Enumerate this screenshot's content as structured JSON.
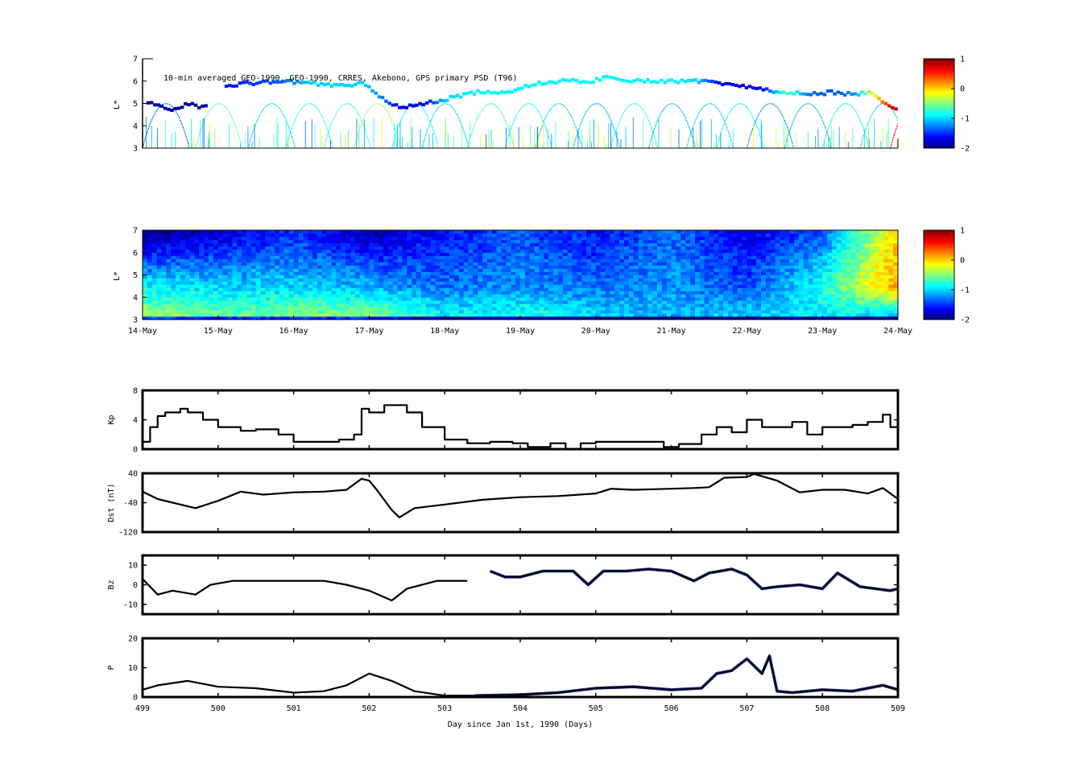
{
  "chart_data": [
    {
      "type": "scatter",
      "panel": "psd-observations",
      "title": "10-min averaged GEO-1990, GEO-1990, CRRES, Akebono, GPS  primary PSD (T96)",
      "ylabel": "L*",
      "ylim": [
        3,
        7
      ],
      "yticks": [
        "3",
        "4",
        "5",
        "6",
        "7"
      ],
      "xlim": [
        499,
        509
      ],
      "colorbar": {
        "range": [
          -2,
          1
        ],
        "ticks": [
          "-2",
          "-1",
          "0",
          "1"
        ],
        "colormap": "jet"
      },
      "upper_track": {
        "x": [
          499.1,
          499.4,
          499.6,
          499.8,
          500.0,
          500.4,
          500.9,
          501.2,
          501.6,
          501.9,
          502.1,
          502.4,
          502.7,
          503.0,
          503.4,
          503.8,
          504.2,
          504.6,
          504.9,
          505.2,
          505.4,
          505.7,
          506.0,
          506.3,
          506.6,
          506.9,
          507.2,
          507.5,
          507.8,
          508.1,
          508.4,
          508.6,
          508.9
        ],
        "y": [
          5.0,
          4.7,
          5.0,
          4.8,
          5.8,
          5.9,
          6.0,
          5.9,
          5.8,
          5.9,
          5.3,
          4.8,
          5.0,
          5.2,
          5.5,
          5.5,
          5.9,
          6.0,
          6.0,
          6.2,
          6.0,
          6.0,
          6.0,
          6.0,
          5.9,
          5.8,
          5.6,
          5.5,
          5.4,
          5.5,
          5.4,
          5.5,
          4.8
        ],
        "color": [
          -1.9,
          -1.9,
          -1.9,
          -1.9,
          -1.6,
          -1.5,
          -1.3,
          -1.0,
          -1.0,
          -1.0,
          -1.2,
          -1.7,
          -1.7,
          -1.0,
          -0.9,
          -0.9,
          -0.9,
          -0.9,
          -0.9,
          -0.9,
          -0.9,
          -0.9,
          -0.9,
          -1.0,
          -1.6,
          -1.7,
          -1.6,
          -0.6,
          -1.3,
          -1.4,
          -1.2,
          -0.4,
          0.8
        ]
      },
      "passes": {
        "x_start": [
          499.0,
          499.7,
          500.4,
          500.9,
          501.4,
          501.8,
          502.3,
          502.7,
          503.3,
          503.8,
          504.2,
          504.7,
          505.2,
          505.7,
          506.2,
          506.6,
          507.0,
          507.5,
          508.0,
          508.5,
          508.9
        ],
        "color": [
          -1.3,
          -0.6,
          -1.0,
          -0.8,
          -0.7,
          -0.4,
          -0.9,
          -1.0,
          -0.7,
          -0.9,
          -1.0,
          -1.1,
          -0.8,
          -1.1,
          -1.0,
          -0.9,
          -1.2,
          -1.1,
          -0.9,
          -1.0,
          0.6
        ]
      }
    },
    {
      "type": "heatmap",
      "panel": "psd-reanalysis",
      "ylabel": "L*",
      "ylim": [
        3,
        7
      ],
      "yticks": [
        "3",
        "4",
        "5",
        "6",
        "7"
      ],
      "xticks": [
        "14-May",
        "15-May",
        "16-May",
        "17-May",
        "18-May",
        "19-May",
        "20-May",
        "21-May",
        "22-May",
        "23-May",
        "24-May"
      ],
      "colorbar": {
        "range": [
          -2,
          1
        ],
        "ticks": [
          "-2",
          "-1",
          "0",
          "1"
        ],
        "colormap": "jet"
      },
      "profile_day": [
        499,
        500,
        501,
        502,
        503,
        504,
        505,
        506,
        507,
        508,
        509
      ],
      "level_low": [
        -0.4,
        -0.6,
        -0.5,
        -0.5,
        -0.9,
        -0.8,
        -1.0,
        -1.1,
        -1.0,
        -0.9,
        -1.0
      ],
      "level_mid": [
        -0.9,
        -1.0,
        -1.0,
        -1.1,
        -1.3,
        -1.2,
        -1.3,
        -1.2,
        -1.4,
        -0.8,
        0.2
      ],
      "level_high": [
        -2.0,
        -1.8,
        -1.5,
        -1.9,
        -1.6,
        -1.4,
        -1.6,
        -1.3,
        -1.7,
        -1.4,
        0.0
      ]
    },
    {
      "type": "line",
      "panel": "kp",
      "ylabel": "Kp",
      "ylim": [
        0,
        8
      ],
      "yticks": [
        "0",
        "4",
        "8"
      ],
      "x": [
        499.0,
        499.1,
        499.2,
        499.3,
        499.5,
        499.6,
        499.8,
        500.0,
        500.3,
        500.5,
        500.8,
        501.0,
        501.3,
        501.6,
        501.8,
        501.9,
        502.0,
        502.2,
        502.5,
        502.7,
        503.0,
        503.3,
        503.6,
        503.9,
        504.1,
        504.4,
        504.6,
        504.8,
        505.0,
        505.3,
        505.6,
        505.9,
        506.1,
        506.4,
        506.6,
        506.8,
        507.0,
        507.2,
        507.4,
        507.6,
        507.8,
        508.0,
        508.2,
        508.4,
        508.6,
        508.8,
        508.9,
        509.0
      ],
      "y": [
        1,
        3,
        4.5,
        5,
        5.5,
        5,
        4,
        3,
        2.5,
        2.7,
        2,
        1,
        1,
        1.3,
        2,
        5.5,
        5,
        6,
        5,
        3,
        1.3,
        0.8,
        1,
        0.8,
        0.3,
        0.8,
        0,
        0.8,
        1,
        1,
        1,
        0.3,
        0.7,
        2,
        3,
        2.3,
        4,
        3,
        3,
        3.7,
        2,
        3,
        3,
        3.3,
        3.7,
        4.7,
        3,
        4.3
      ],
      "series": [
        {
          "name": "",
          "color": "#000000"
        }
      ]
    },
    {
      "type": "line",
      "panel": "dst",
      "ylabel": "Dst (nT)",
      "ylim": [
        -120,
        40
      ],
      "yticks": [
        "-120",
        "-40",
        "40"
      ],
      "x": [
        499.0,
        499.2,
        499.4,
        499.7,
        500.0,
        500.3,
        500.6,
        501.0,
        501.4,
        501.7,
        501.9,
        502.0,
        502.1,
        502.3,
        502.4,
        502.6,
        503.0,
        503.5,
        504.0,
        504.5,
        505.0,
        505.2,
        505.5,
        506.0,
        506.3,
        506.5,
        506.7,
        507.0,
        507.1,
        507.4,
        507.7,
        508.0,
        508.3,
        508.6,
        508.8,
        509.0
      ],
      "y": [
        -10,
        -30,
        -40,
        -55,
        -35,
        -10,
        -18,
        -12,
        -10,
        -5,
        25,
        20,
        -5,
        -60,
        -80,
        -55,
        -45,
        -32,
        -25,
        -22,
        -15,
        -2,
        -5,
        -2,
        0,
        2,
        28,
        30,
        38,
        20,
        -12,
        -5,
        -5,
        -15,
        0,
        -30
      ],
      "series": [
        {
          "name": "",
          "color": "#000000"
        }
      ]
    },
    {
      "type": "line",
      "panel": "bz",
      "ylabel": "Bz",
      "ylim": [
        -15,
        15
      ],
      "yticks": [
        "-10",
        "0",
        "10"
      ],
      "x": [
        499.0,
        499.2,
        499.4,
        499.7,
        499.9,
        500.2,
        500.6,
        501.0,
        501.4,
        501.7,
        502.0,
        502.3,
        502.5,
        502.9,
        503.3,
        503.6,
        503.8,
        504.0,
        504.3,
        504.7,
        504.9,
        505.1,
        505.4,
        505.7,
        506.0,
        506.3,
        506.5,
        506.8,
        507.0,
        507.2,
        507.4,
        507.7,
        508.0,
        508.2,
        508.5,
        508.7,
        508.9,
        509.0
      ],
      "y": [
        3,
        -5,
        -3,
        -5,
        0,
        2,
        2,
        2,
        2,
        0,
        -3,
        -8,
        -2,
        2,
        2,
        7,
        4,
        4,
        7,
        7,
        0,
        7,
        7,
        8,
        7,
        2,
        6,
        8,
        5,
        -2,
        -1,
        0,
        -2,
        6,
        -1,
        -2,
        -3,
        -2
      ],
      "dark_from_x": 503.4,
      "series": [
        {
          "name": "",
          "color": "#000000",
          "dark_color": "#0d1a5c"
        }
      ]
    },
    {
      "type": "line",
      "panel": "pressure",
      "ylabel": "P",
      "ylim": [
        0,
        20
      ],
      "yticks": [
        "0",
        "10",
        "20"
      ],
      "xlim": [
        499,
        509
      ],
      "xticks": [
        "499",
        "500",
        "501",
        "502",
        "503",
        "504",
        "505",
        "506",
        "507",
        "508",
        "509"
      ],
      "xlabel": "Day since Jan 1st, 1990 (Days)",
      "x": [
        499.0,
        499.2,
        499.6,
        500.0,
        500.5,
        501.0,
        501.4,
        501.7,
        502.0,
        502.3,
        502.6,
        503.0,
        503.4,
        504.0,
        504.5,
        505.0,
        505.5,
        506.0,
        506.4,
        506.6,
        506.8,
        507.0,
        507.2,
        507.3,
        507.4,
        507.6,
        508.0,
        508.4,
        508.8,
        509.0
      ],
      "y": [
        2.5,
        4,
        5.5,
        3.5,
        3,
        1.5,
        2,
        4,
        8,
        5.5,
        2,
        0.5,
        0.5,
        0.8,
        1.5,
        3,
        3.5,
        2.5,
        3,
        8,
        9,
        13,
        8,
        14,
        2,
        1.5,
        2.5,
        2,
        4,
        2.5
      ],
      "dark_from_x": 503.4,
      "series": [
        {
          "name": "",
          "color": "#000000",
          "dark_color": "#0d1a5c"
        }
      ]
    }
  ]
}
